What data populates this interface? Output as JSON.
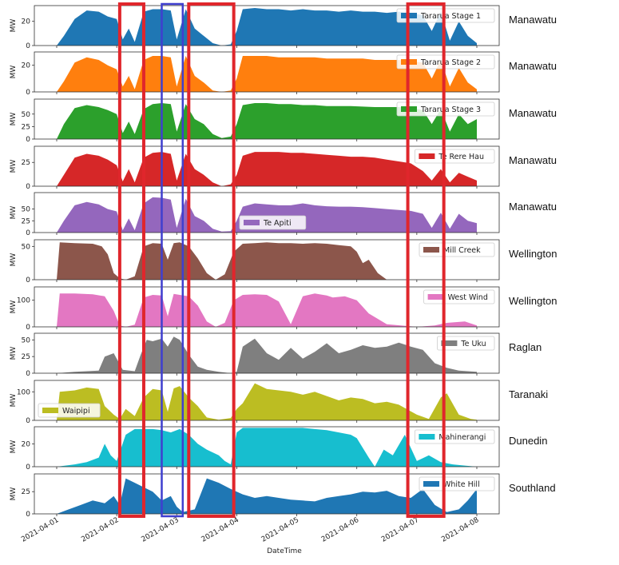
{
  "chart_data": [
    {
      "type": "area",
      "region": "Manawatu",
      "ylabel": "MW",
      "ylim": [
        0,
        33
      ],
      "yticks": [
        0,
        20
      ],
      "legend": "Tararua Stage 1",
      "legend_pos": "upper right",
      "color": "#1f77b4",
      "x": [
        0,
        0.12,
        0.3,
        0.5,
        0.7,
        0.85,
        1.0,
        1.1,
        1.2,
        1.3,
        1.45,
        1.6,
        1.75,
        1.9,
        2.0,
        2.15,
        2.3,
        2.45,
        2.6,
        2.75,
        2.9,
        3.0,
        3.1,
        3.3,
        3.5,
        3.7,
        3.9,
        4.1,
        4.3,
        4.5,
        4.7,
        4.9,
        5.1,
        5.3,
        5.5,
        5.7,
        5.9,
        6.1,
        6.25,
        6.4,
        6.55,
        6.7,
        6.85,
        7.0
      ],
      "y": [
        0,
        8,
        22,
        29,
        28,
        24,
        22,
        5,
        14,
        3,
        28,
        30,
        30,
        29,
        5,
        30,
        14,
        8,
        2,
        0,
        1,
        12,
        30,
        31,
        30,
        30,
        29,
        30,
        29,
        29,
        28,
        29,
        28,
        28,
        27,
        28,
        27,
        25,
        12,
        28,
        4,
        20,
        8,
        2
      ]
    },
    {
      "type": "area",
      "region": "Manawatu",
      "ylabel": "MW",
      "ylim": [
        0,
        30
      ],
      "yticks": [
        0,
        20
      ],
      "legend": "Tararua Stage 2",
      "legend_pos": "upper right",
      "color": "#ff7f0e",
      "x": [
        0,
        0.12,
        0.3,
        0.5,
        0.7,
        0.85,
        1.0,
        1.1,
        1.2,
        1.3,
        1.45,
        1.6,
        1.75,
        1.9,
        2.0,
        2.15,
        2.3,
        2.45,
        2.6,
        2.75,
        2.9,
        3.0,
        3.1,
        3.3,
        3.5,
        3.7,
        3.9,
        4.1,
        4.3,
        4.5,
        4.7,
        4.9,
        5.1,
        5.3,
        5.5,
        5.7,
        5.9,
        6.1,
        6.25,
        6.4,
        6.55,
        6.7,
        6.85,
        7.0
      ],
      "y": [
        0,
        8,
        22,
        26,
        24,
        20,
        17,
        4,
        12,
        2,
        24,
        27,
        27,
        26,
        4,
        27,
        12,
        7,
        1,
        0,
        1,
        10,
        27,
        27,
        27,
        26,
        26,
        26,
        26,
        25,
        25,
        25,
        25,
        24,
        24,
        24,
        23,
        22,
        10,
        24,
        4,
        18,
        7,
        2
      ]
    },
    {
      "type": "area",
      "region": "Manawatu",
      "ylabel": "MW",
      "ylim": [
        0,
        80
      ],
      "yticks": [
        0,
        25,
        50
      ],
      "legend": "Tararua Stage 3",
      "legend_pos": "upper right",
      "color": "#2ca02c",
      "x": [
        0,
        0.12,
        0.3,
        0.5,
        0.7,
        0.85,
        1.0,
        1.1,
        1.2,
        1.3,
        1.45,
        1.6,
        1.75,
        1.9,
        2.0,
        2.15,
        2.3,
        2.45,
        2.6,
        2.75,
        2.9,
        3.0,
        3.1,
        3.3,
        3.5,
        3.7,
        3.9,
        4.1,
        4.3,
        4.5,
        4.7,
        4.9,
        5.1,
        5.3,
        5.5,
        5.7,
        5.9,
        6.1,
        6.25,
        6.4,
        6.55,
        6.7,
        6.85,
        7.0
      ],
      "y": [
        0,
        30,
        62,
        68,
        64,
        58,
        50,
        12,
        35,
        10,
        60,
        70,
        72,
        70,
        15,
        70,
        40,
        30,
        10,
        2,
        5,
        30,
        68,
        72,
        72,
        70,
        70,
        68,
        68,
        66,
        66,
        66,
        65,
        64,
        64,
        64,
        62,
        58,
        30,
        60,
        15,
        50,
        30,
        40
      ]
    },
    {
      "type": "area",
      "region": "Manawatu",
      "ylabel": "MW",
      "ylim": [
        0,
        42
      ],
      "yticks": [
        0,
        25
      ],
      "legend": "Te Rere Hau",
      "legend_pos": "upper right",
      "color": "#d62728",
      "x": [
        0,
        0.12,
        0.3,
        0.5,
        0.7,
        0.85,
        1.0,
        1.1,
        1.2,
        1.3,
        1.45,
        1.6,
        1.75,
        1.9,
        2.0,
        2.15,
        2.3,
        2.45,
        2.6,
        2.75,
        2.9,
        3.0,
        3.1,
        3.3,
        3.5,
        3.7,
        3.9,
        4.1,
        4.3,
        4.5,
        4.7,
        4.9,
        5.1,
        5.3,
        5.5,
        5.7,
        5.9,
        6.1,
        6.25,
        6.4,
        6.55,
        6.7,
        6.85,
        7.0
      ],
      "y": [
        0,
        12,
        30,
        34,
        32,
        28,
        22,
        5,
        18,
        4,
        30,
        35,
        36,
        34,
        6,
        34,
        18,
        12,
        4,
        0,
        2,
        12,
        32,
        36,
        36,
        36,
        35,
        35,
        34,
        33,
        32,
        31,
        31,
        30,
        28,
        26,
        24,
        16,
        6,
        18,
        4,
        14,
        10,
        6
      ]
    },
    {
      "type": "area",
      "region": "Manawatu",
      "ylabel": "MW",
      "ylim": [
        0,
        85
      ],
      "yticks": [
        0,
        25,
        50
      ],
      "legend": "Te Apiti",
      "legend_pos": "lower center",
      "color": "#9467bd",
      "x": [
        0,
        0.12,
        0.3,
        0.5,
        0.7,
        0.85,
        1.0,
        1.1,
        1.2,
        1.3,
        1.45,
        1.6,
        1.75,
        1.9,
        2.0,
        2.15,
        2.3,
        2.45,
        2.6,
        2.75,
        2.9,
        3.0,
        3.1,
        3.3,
        3.5,
        3.7,
        3.9,
        4.1,
        4.3,
        4.5,
        4.7,
        4.9,
        5.1,
        5.3,
        5.5,
        5.7,
        5.9,
        6.1,
        6.25,
        6.4,
        6.55,
        6.7,
        6.85,
        7.0
      ],
      "y": [
        0,
        25,
        58,
        65,
        60,
        50,
        45,
        5,
        30,
        5,
        62,
        75,
        74,
        70,
        10,
        72,
        35,
        25,
        8,
        2,
        3,
        25,
        55,
        62,
        60,
        58,
        58,
        62,
        58,
        56,
        55,
        55,
        54,
        52,
        50,
        48,
        46,
        40,
        10,
        42,
        8,
        40,
        25,
        20
      ]
    },
    {
      "type": "area",
      "region": "Wellington",
      "ylabel": "MW",
      "ylim": [
        0,
        60
      ],
      "yticks": [
        0,
        50
      ],
      "legend": "Mill Creek",
      "legend_pos": "upper right",
      "color": "#8c564b",
      "x": [
        0,
        0.05,
        0.3,
        0.6,
        0.75,
        0.85,
        0.95,
        1.05,
        1.15,
        1.3,
        1.45,
        1.6,
        1.75,
        1.85,
        1.95,
        2.05,
        2.2,
        2.35,
        2.5,
        2.65,
        2.8,
        2.95,
        3.1,
        3.3,
        3.5,
        3.7,
        3.9,
        4.1,
        4.3,
        4.5,
        4.7,
        4.9,
        5.0,
        5.1,
        5.2,
        5.35,
        5.5,
        6.0,
        6.5,
        7.0
      ],
      "y": [
        0,
        56,
        55,
        54,
        50,
        38,
        10,
        2,
        0,
        5,
        50,
        55,
        54,
        30,
        55,
        56,
        50,
        32,
        10,
        0,
        8,
        42,
        54,
        55,
        56,
        55,
        55,
        54,
        55,
        54,
        52,
        50,
        42,
        25,
        30,
        10,
        0,
        0,
        0,
        0
      ]
    },
    {
      "type": "area",
      "region": "Wellington",
      "ylabel": "MW",
      "ylim": [
        0,
        150
      ],
      "yticks": [
        0,
        100
      ],
      "legend": "West Wind",
      "legend_pos": "upper right",
      "color": "#e377c2",
      "x": [
        0,
        0.05,
        0.3,
        0.6,
        0.8,
        0.95,
        1.05,
        1.15,
        1.3,
        1.45,
        1.6,
        1.75,
        1.85,
        1.95,
        2.05,
        2.2,
        2.35,
        2.5,
        2.65,
        2.8,
        2.95,
        3.1,
        3.3,
        3.5,
        3.7,
        3.9,
        4.1,
        4.3,
        4.5,
        4.6,
        4.8,
        5.0,
        5.2,
        5.5,
        6.0,
        6.3,
        6.5,
        6.8,
        7.0
      ],
      "y": [
        0,
        125,
        125,
        122,
        115,
        60,
        5,
        0,
        8,
        110,
        120,
        118,
        40,
        124,
        120,
        115,
        80,
        20,
        0,
        15,
        100,
        120,
        122,
        120,
        95,
        10,
        115,
        125,
        118,
        110,
        115,
        100,
        50,
        10,
        0,
        5,
        15,
        20,
        5
      ]
    },
    {
      "type": "area",
      "region": "Raglan",
      "ylabel": "MW",
      "ylim": [
        0,
        60
      ],
      "yticks": [
        0,
        25,
        50
      ],
      "legend": "Te Uku",
      "legend_pos": "upper right",
      "color": "#7f7f7f",
      "x": [
        0,
        0.3,
        0.5,
        0.7,
        0.8,
        0.95,
        1.1,
        1.3,
        1.4,
        1.5,
        1.6,
        1.75,
        1.85,
        1.95,
        2.05,
        2.2,
        2.35,
        2.5,
        2.7,
        2.9,
        3.0,
        3.1,
        3.3,
        3.5,
        3.7,
        3.9,
        4.1,
        4.3,
        4.5,
        4.7,
        4.9,
        5.1,
        5.3,
        5.5,
        5.7,
        5.9,
        6.1,
        6.3,
        6.5,
        6.7,
        7.0
      ],
      "y": [
        0,
        2,
        3,
        4,
        25,
        30,
        5,
        3,
        28,
        50,
        48,
        52,
        40,
        55,
        50,
        28,
        10,
        5,
        2,
        0,
        2,
        40,
        52,
        30,
        20,
        38,
        22,
        32,
        45,
        30,
        35,
        42,
        38,
        40,
        46,
        40,
        35,
        15,
        8,
        4,
        2
      ]
    },
    {
      "type": "area",
      "region": "Taranaki",
      "ylabel": "MW",
      "ylim": [
        0,
        140
      ],
      "yticks": [
        0,
        100
      ],
      "legend": "Waipipi",
      "legend_pos": "lower left",
      "color": "#bcbd22",
      "x": [
        0,
        0.05,
        0.3,
        0.5,
        0.7,
        0.8,
        0.95,
        1.05,
        1.15,
        1.3,
        1.45,
        1.6,
        1.75,
        1.85,
        1.95,
        2.05,
        2.2,
        2.35,
        2.5,
        2.7,
        2.9,
        3.0,
        3.1,
        3.3,
        3.5,
        3.7,
        3.9,
        4.1,
        4.3,
        4.5,
        4.7,
        4.9,
        5.1,
        5.3,
        5.5,
        5.7,
        6.0,
        6.2,
        6.4,
        6.5,
        6.7,
        6.9,
        7.0
      ],
      "y": [
        0,
        100,
        105,
        115,
        110,
        50,
        20,
        5,
        40,
        15,
        80,
        110,
        105,
        30,
        112,
        120,
        80,
        50,
        10,
        2,
        8,
        40,
        60,
        130,
        110,
        105,
        100,
        90,
        100,
        85,
        70,
        80,
        75,
        60,
        65,
        55,
        20,
        5,
        80,
        95,
        20,
        5,
        2
      ]
    },
    {
      "type": "area",
      "region": "Dunedin",
      "ylabel": "MW",
      "ylim": [
        0,
        35
      ],
      "yticks": [
        0,
        20
      ],
      "legend": "Mahinerangi",
      "legend_pos": "upper right",
      "color": "#17becf",
      "x": [
        0,
        0.3,
        0.5,
        0.7,
        0.8,
        0.9,
        1.0,
        1.15,
        1.3,
        1.45,
        1.6,
        1.75,
        1.9,
        2.05,
        2.2,
        2.35,
        2.5,
        2.7,
        2.8,
        2.9,
        3.0,
        3.1,
        3.3,
        3.5,
        3.7,
        3.9,
        4.1,
        4.3,
        4.5,
        4.7,
        4.9,
        5.0,
        5.2,
        5.3,
        5.45,
        5.6,
        5.8,
        6.0,
        6.2,
        6.4,
        6.6,
        6.8,
        7.0
      ],
      "y": [
        0,
        2,
        4,
        8,
        20,
        10,
        5,
        28,
        33,
        33,
        33,
        32,
        30,
        33,
        28,
        20,
        15,
        10,
        5,
        2,
        30,
        34,
        34,
        34,
        34,
        34,
        34,
        33,
        32,
        30,
        28,
        25,
        8,
        0,
        15,
        10,
        28,
        5,
        10,
        4,
        2,
        1,
        0
      ]
    },
    {
      "type": "area",
      "region": "Southland",
      "ylabel": "MW",
      "ylim": [
        0,
        45
      ],
      "yticks": [
        0,
        25
      ],
      "legend": "White Hill",
      "legend_pos": "upper right",
      "color": "#1f77b4",
      "x": [
        0,
        0.2,
        0.4,
        0.6,
        0.8,
        0.95,
        1.05,
        1.15,
        1.3,
        1.45,
        1.6,
        1.75,
        1.9,
        2.0,
        2.1,
        2.3,
        2.5,
        2.7,
        2.9,
        3.0,
        3.1,
        3.3,
        3.5,
        3.7,
        3.9,
        4.1,
        4.3,
        4.5,
        4.7,
        4.9,
        5.1,
        5.3,
        5.5,
        5.7,
        5.9,
        6.1,
        6.3,
        6.5,
        6.7,
        6.85,
        7.0
      ],
      "y": [
        0,
        5,
        10,
        15,
        12,
        20,
        10,
        40,
        35,
        30,
        25,
        15,
        20,
        8,
        2,
        5,
        40,
        35,
        28,
        25,
        22,
        18,
        20,
        18,
        16,
        15,
        14,
        18,
        20,
        22,
        25,
        24,
        26,
        20,
        18,
        28,
        10,
        2,
        5,
        15,
        28
      ]
    }
  ],
  "xaxis": {
    "label": "DateTime",
    "ticks": [
      "2021-04-01",
      "2021-04-02",
      "2021-04-03",
      "2021-04-04",
      "2021-04-05",
      "2021-04-06",
      "2021-04-07",
      "2021-04-08"
    ]
  },
  "highlight_boxes": [
    {
      "color": "#e0262c",
      "x_start": 1.05,
      "x_end": 1.45
    },
    {
      "color": "#3f3fcf",
      "x_start": 1.75,
      "x_end": 2.1
    },
    {
      "color": "#e0262c",
      "x_start": 2.2,
      "x_end": 2.95
    },
    {
      "color": "#e0262c",
      "x_start": 5.85,
      "x_end": 6.45
    }
  ]
}
